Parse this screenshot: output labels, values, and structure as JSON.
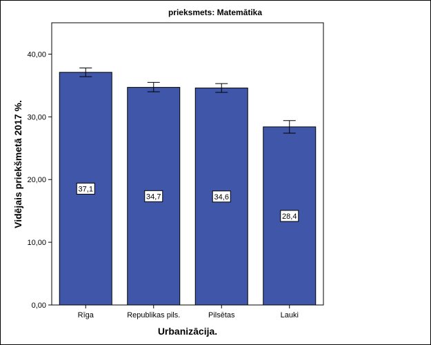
{
  "chart_data": {
    "type": "bar",
    "title": "prieksmets: Matemātika",
    "xlabel": "Urbanizācija.",
    "ylabel": "Vidējais priekšmetā 2017 %.",
    "categories": [
      "Rīga",
      "Republikas pils.",
      "Pilsētas",
      "Lauki"
    ],
    "values": [
      37.1,
      34.7,
      34.6,
      28.4
    ],
    "value_labels": [
      "37,1",
      "34,7",
      "34,6",
      "28,4"
    ],
    "error_low": [
      36.4,
      34.0,
      33.9,
      27.4
    ],
    "error_high": [
      37.8,
      35.5,
      35.3,
      29.4
    ],
    "ylim": [
      0,
      45
    ],
    "yticks": [
      0,
      10,
      20,
      30,
      40
    ],
    "ytick_labels": [
      "0,00",
      "10,00",
      "20,00",
      "30,00",
      "40,00"
    ],
    "bar_color": "#3f56a9",
    "grid": false
  }
}
